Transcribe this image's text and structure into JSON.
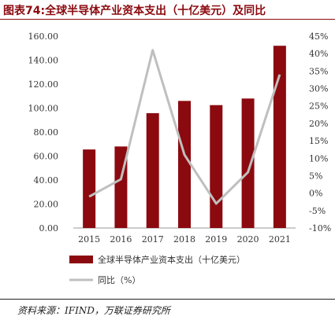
{
  "title": "图表74:全球半导体产业资本支出（十亿美元）及同比",
  "source": "资料来源：IFIND，万联证券研究所",
  "chart_data": {
    "type": "bar",
    "categories": [
      "2015",
      "2016",
      "2017",
      "2018",
      "2019",
      "2020",
      "2021"
    ],
    "series": [
      {
        "name": "全球半导体产业资本支出（十亿美元）",
        "type": "bar",
        "axis": "left",
        "color": "#8b0a0f",
        "values": [
          65.5,
          68.0,
          95.8,
          106.0,
          102.5,
          108.0,
          152.0
        ]
      },
      {
        "name": "同比（%）",
        "type": "line",
        "axis": "right",
        "color": "#bfbfbf",
        "values": [
          -1.0,
          4.0,
          41.0,
          11.0,
          -3.0,
          6.0,
          34.0
        ]
      }
    ],
    "ylim_left": [
      0,
      160
    ],
    "yticks_left": [
      "0.00",
      "20.00",
      "40.00",
      "60.00",
      "80.00",
      "100.00",
      "120.00",
      "140.00",
      "160.00"
    ],
    "ylim_right": [
      -10,
      45
    ],
    "yticks_right": [
      "-10%",
      "-5%",
      "0%",
      "5%",
      "10%",
      "15%",
      "20%",
      "25%",
      "30%",
      "35%",
      "40%",
      "45%"
    ],
    "grid": false,
    "legend_position": "bottom-left"
  }
}
